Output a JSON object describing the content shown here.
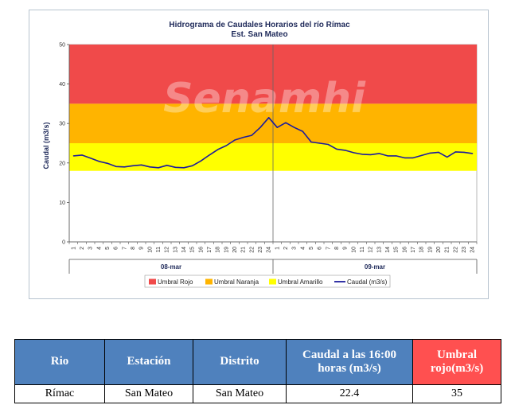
{
  "chart_data": {
    "type": "line",
    "title": "Hidrograma de Caudales Horarios del río Rímac",
    "subtitle": "Est. San Mateo",
    "ylabel": "Caudal  (m3/s)",
    "ylim": [
      0,
      50
    ],
    "yticks": [
      "0",
      "10",
      "20",
      "30",
      "40",
      "50"
    ],
    "hours_per_day": 24,
    "x_tick_labels": [
      "1",
      "2",
      "3",
      "4",
      "5",
      "6",
      "7",
      "8",
      "9",
      "10",
      "11",
      "12",
      "13",
      "14",
      "15",
      "16",
      "17",
      "18",
      "19",
      "20",
      "21",
      "22",
      "23",
      "24"
    ],
    "days": [
      "08-mar",
      "09-mar"
    ],
    "thresholds": [
      {
        "name": "Umbral Rojo",
        "from": 35,
        "to": 50,
        "color": "#f04a4a"
      },
      {
        "name": "Umbral Naranja",
        "from": 25,
        "to": 35,
        "color": "#ffb400"
      },
      {
        "name": "Umbral Amarillo",
        "from": 18,
        "to": 25,
        "color": "#ffff00"
      }
    ],
    "series": [
      {
        "name": "Caudal (m3/s)",
        "color": "#1c1c9c",
        "values": [
          21.8,
          22.0,
          21.2,
          20.4,
          19.9,
          19.1,
          19.0,
          19.3,
          19.5,
          19.0,
          18.8,
          19.4,
          18.9,
          18.8,
          19.3,
          20.5,
          22.0,
          23.4,
          24.4,
          25.8,
          26.5,
          27.0,
          29.0,
          31.5,
          29.0,
          30.2,
          29.0,
          28.0,
          25.3,
          25.0,
          24.7,
          23.5,
          23.2,
          22.6,
          22.2,
          22.1,
          22.4,
          21.8,
          21.8,
          21.3,
          21.3,
          21.9,
          22.5,
          22.7,
          21.5,
          22.8,
          22.7,
          22.4
        ]
      }
    ],
    "legend_position": "bottom"
  },
  "watermark": "Senamhi",
  "table": {
    "headers": [
      "Rio",
      "Estación",
      "Distrito",
      "Caudal a las 16:00 horas (m3/s)",
      "Umbral rojo(m3/s)"
    ],
    "row": [
      "Rímac",
      "San Mateo",
      "San Mateo",
      "22.4",
      "35"
    ]
  }
}
